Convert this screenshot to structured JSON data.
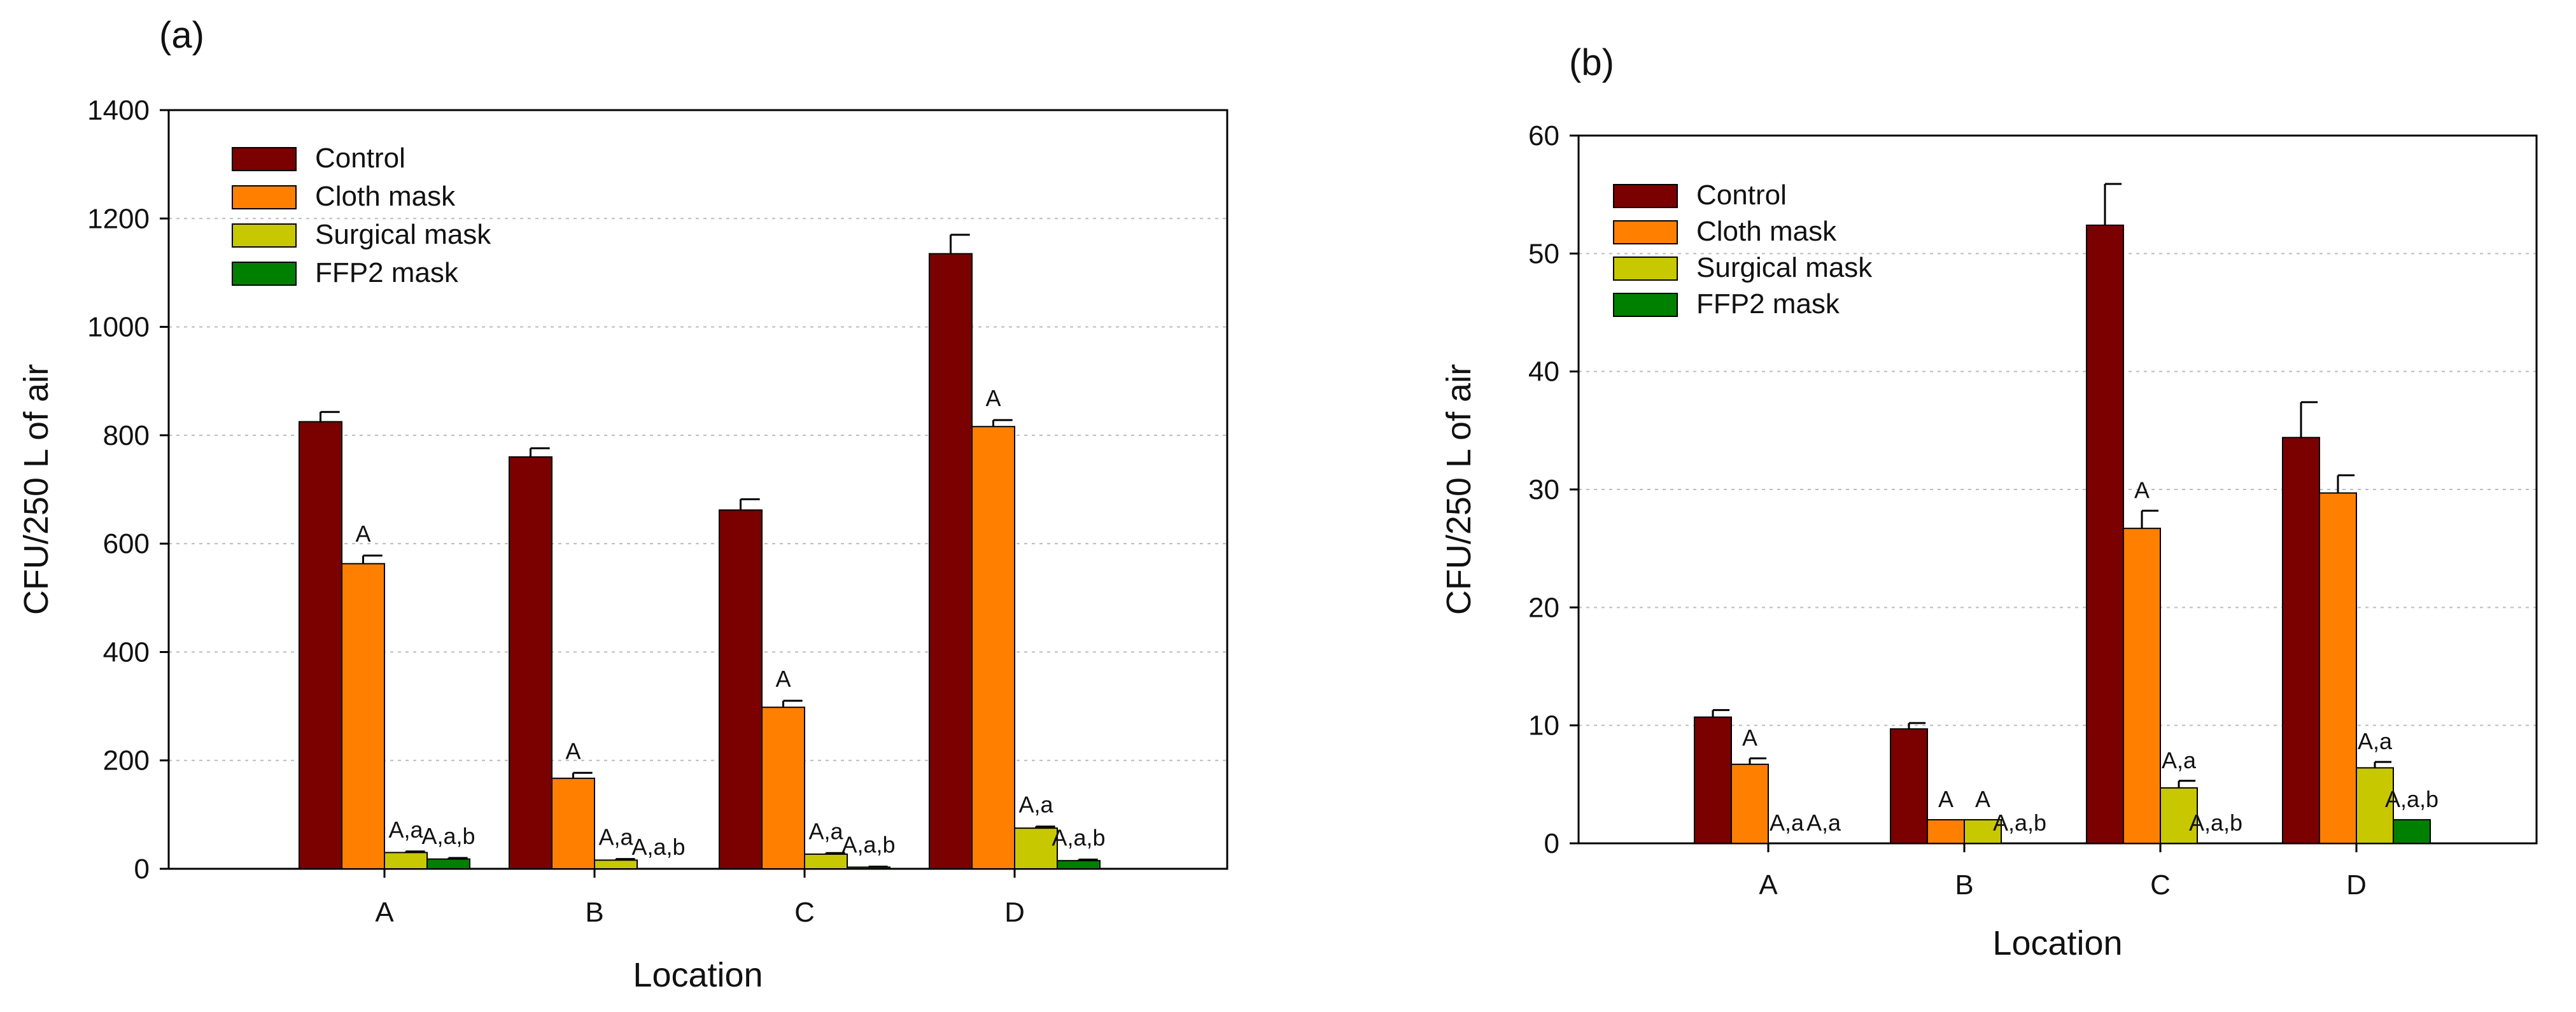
{
  "chart_data": [
    {
      "type": "bar",
      "panel_label": "(a)",
      "title": "",
      "xlabel": "Location",
      "ylabel": "CFU/250 L of air",
      "ylim": [
        0,
        1400
      ],
      "yticks": [
        0,
        200,
        400,
        600,
        800,
        1000,
        1200,
        1400
      ],
      "grid": "horizontal dotted",
      "legend_position": "top-left",
      "categories": [
        "A",
        "B",
        "C",
        "D"
      ],
      "series": [
        {
          "name": "Control",
          "color": "#7b0000",
          "values": [
            825,
            760,
            662,
            1135
          ],
          "errors": [
            18,
            16,
            20,
            35
          ],
          "annotations": [
            "",
            "",
            "",
            ""
          ]
        },
        {
          "name": "Cloth mask",
          "color": "#ff8000",
          "values": [
            563,
            167,
            298,
            816
          ],
          "errors": [
            15,
            10,
            12,
            12
          ],
          "annotations": [
            "A",
            "A",
            "A",
            "A"
          ]
        },
        {
          "name": "Surgical mask",
          "color": "#c8c800",
          "values": [
            30,
            16,
            27,
            75
          ],
          "errors": [
            2,
            2,
            2,
            3
          ],
          "annotations": [
            "A,a",
            "A,a",
            "A,a",
            "A,a"
          ]
        },
        {
          "name": "FFP2 mask",
          "color": "#008000",
          "values": [
            18,
            0,
            3,
            15
          ],
          "errors": [
            2,
            0,
            1,
            2
          ],
          "annotations": [
            "A,a,b",
            "A,a,b",
            "A,a,b",
            "A,a,b"
          ]
        }
      ]
    },
    {
      "type": "bar",
      "panel_label": "(b)",
      "title": "",
      "xlabel": "Location",
      "ylabel": "CFU/250 L of air",
      "ylim": [
        0,
        60
      ],
      "yticks": [
        0,
        10,
        20,
        30,
        40,
        50,
        60
      ],
      "grid": "horizontal dotted",
      "legend_position": "top-left",
      "categories": [
        "A",
        "B",
        "C",
        "D"
      ],
      "series": [
        {
          "name": "Control",
          "color": "#7b0000",
          "values": [
            10.7,
            9.7,
            52.4,
            34.4
          ],
          "errors": [
            0.6,
            0.5,
            3.5,
            3.0
          ],
          "annotations": [
            "",
            "",
            "",
            ""
          ]
        },
        {
          "name": "Cloth mask",
          "color": "#ff8000",
          "values": [
            6.7,
            2.0,
            26.7,
            29.7
          ],
          "errors": [
            0.5,
            0,
            1.5,
            1.5
          ],
          "annotations": [
            "A",
            "A",
            "A",
            ""
          ]
        },
        {
          "name": "Surgical mask",
          "color": "#c8c800",
          "values": [
            0,
            2.0,
            4.7,
            6.4
          ],
          "errors": [
            0,
            0,
            0.6,
            0.5
          ],
          "annotations": [
            "A,a",
            "A",
            "A,a",
            "A,a"
          ]
        },
        {
          "name": "FFP2 mask",
          "color": "#008000",
          "values": [
            0,
            0,
            0,
            2.0
          ],
          "errors": [
            0,
            0,
            0,
            0
          ],
          "annotations": [
            "A,a",
            "A,a,b",
            "A,a,b",
            "A,a,b"
          ]
        }
      ]
    }
  ]
}
